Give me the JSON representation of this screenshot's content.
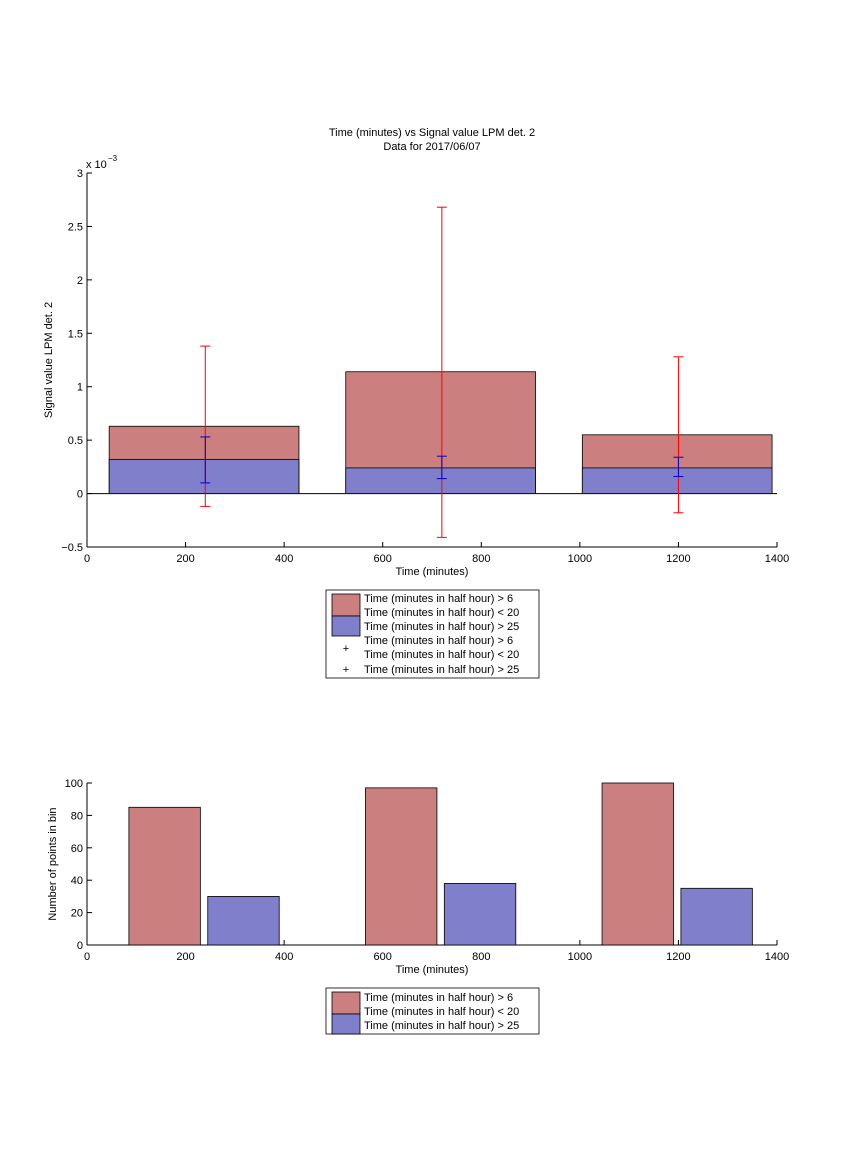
{
  "colors": {
    "red_fill": "#cc7f7f",
    "blue_fill": "#7f7fcc",
    "red_err": "#ff0000",
    "blue_err": "#0000cc",
    "edge": "#000000"
  },
  "chart_data": [
    {
      "type": "bar",
      "title": "Time (minutes) vs Signal value LPM det. 2",
      "subtitle": "Data for 2017/06/07",
      "xlabel": "Time (minutes)",
      "ylabel": "Signal value LPM det. 2",
      "exponent_label": "x 10",
      "exponent_power": "−3",
      "xlim": [
        0,
        1400
      ],
      "ylim": [
        -0.5,
        3
      ],
      "xticks": [
        "0",
        "200",
        "400",
        "600",
        "800",
        "1000",
        "1200",
        "1400"
      ],
      "yticks": [
        "−0.5",
        "0",
        "0.5",
        "1",
        "1.5",
        "2",
        "2.5",
        "3"
      ],
      "ytick_values": [
        -0.5,
        0,
        0.5,
        1,
        1.5,
        2,
        2.5,
        3
      ],
      "xtick_values": [
        0,
        200,
        400,
        600,
        800,
        1000,
        1200,
        1400
      ],
      "bars": [
        {
          "x_start": 45,
          "x_end": 430,
          "red_value": 0.63,
          "blue_value": 0.32
        },
        {
          "x_start": 525,
          "x_end": 910,
          "red_value": 1.14,
          "blue_value": 0.24
        },
        {
          "x_start": 1005,
          "x_end": 1390,
          "red_value": 0.55,
          "blue_value": 0.24
        }
      ],
      "error_bars": {
        "red": [
          {
            "x": 240,
            "y": 0.63,
            "low": -0.12,
            "high": 1.38
          },
          {
            "x": 720,
            "y": 1.14,
            "low": -0.41,
            "high": 2.68
          },
          {
            "x": 1200,
            "y": 0.55,
            "low": -0.18,
            "high": 1.28
          }
        ],
        "blue": [
          {
            "x": 240,
            "y": 0.32,
            "low": 0.1,
            "high": 0.53
          },
          {
            "x": 720,
            "y": 0.24,
            "low": 0.14,
            "high": 0.35
          },
          {
            "x": 1200,
            "y": 0.24,
            "low": 0.16,
            "high": 0.34
          }
        ]
      },
      "legend": {
        "position": "below",
        "entries": [
          {
            "line1": "Time (minutes in half hour) > 6",
            "line2": "Time (minutes in half hour) < 20"
          },
          {
            "line1": "Time (minutes in half hour) > 25"
          },
          {
            "line1": "Time (minutes in half hour) > 6",
            "line2": "Time (minutes in half hour) < 20"
          },
          {
            "line1": "Time (minutes in half hour) > 25"
          }
        ]
      },
      "grid": false
    },
    {
      "type": "bar",
      "xlabel": "Time (minutes)",
      "ylabel": "Number of points in bin",
      "xlim": [
        0,
        1400
      ],
      "ylim": [
        0,
        100
      ],
      "xticks": [
        "0",
        "200",
        "400",
        "600",
        "800",
        "1000",
        "1200",
        "1400"
      ],
      "xtick_values": [
        0,
        200,
        400,
        600,
        800,
        1000,
        1200,
        1400
      ],
      "yticks": [
        "0",
        "20",
        "40",
        "60",
        "80",
        "100"
      ],
      "ytick_values": [
        0,
        20,
        40,
        60,
        80,
        100
      ],
      "bars": [
        {
          "series": "red",
          "x_start": 85,
          "x_end": 230,
          "value": 85
        },
        {
          "series": "blue",
          "x_start": 245,
          "x_end": 390,
          "value": 30
        },
        {
          "series": "red",
          "x_start": 565,
          "x_end": 710,
          "value": 97
        },
        {
          "series": "blue",
          "x_start": 725,
          "x_end": 870,
          "value": 38
        },
        {
          "series": "red",
          "x_start": 1045,
          "x_end": 1190,
          "value": 100
        },
        {
          "series": "blue",
          "x_start": 1205,
          "x_end": 1350,
          "value": 35
        }
      ],
      "legend": {
        "position": "below",
        "entries": [
          {
            "line1": "Time (minutes in half hour) > 6",
            "line2": "Time (minutes in half hour) < 20"
          },
          {
            "line1": "Time (minutes in half hour) > 25"
          }
        ]
      },
      "grid": false
    }
  ]
}
